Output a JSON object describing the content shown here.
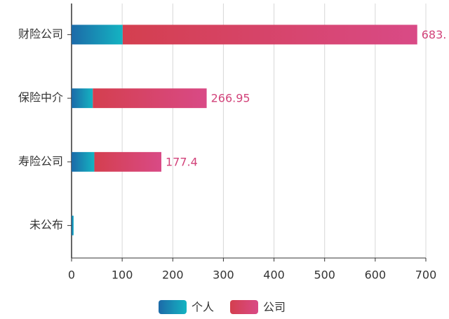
{
  "chart_data": {
    "type": "stacked-bar-horizontal",
    "categories": [
      "财险公司",
      "保险中介",
      "寿险公司",
      "未公布"
    ],
    "series": [
      {
        "name": "个人",
        "color": [
          "#1c6aa8",
          "#14b4c2"
        ],
        "values": [
          101,
          42,
          45,
          4
        ]
      },
      {
        "name": "公司",
        "color": [
          "#d43f4f",
          "#d94a86"
        ],
        "values": [
          582,
          224.95,
          132.4,
          0
        ]
      }
    ],
    "totals": {
      "values": [
        683,
        266.95,
        177.4,
        null
      ],
      "value_labels": [
        "683.",
        "266.95",
        "177.4",
        null
      ],
      "color": "#d2437a"
    },
    "xlim": [
      0,
      700
    ],
    "xticks": [
      0,
      100,
      200,
      300,
      400,
      500,
      600,
      700
    ],
    "grid": true
  }
}
